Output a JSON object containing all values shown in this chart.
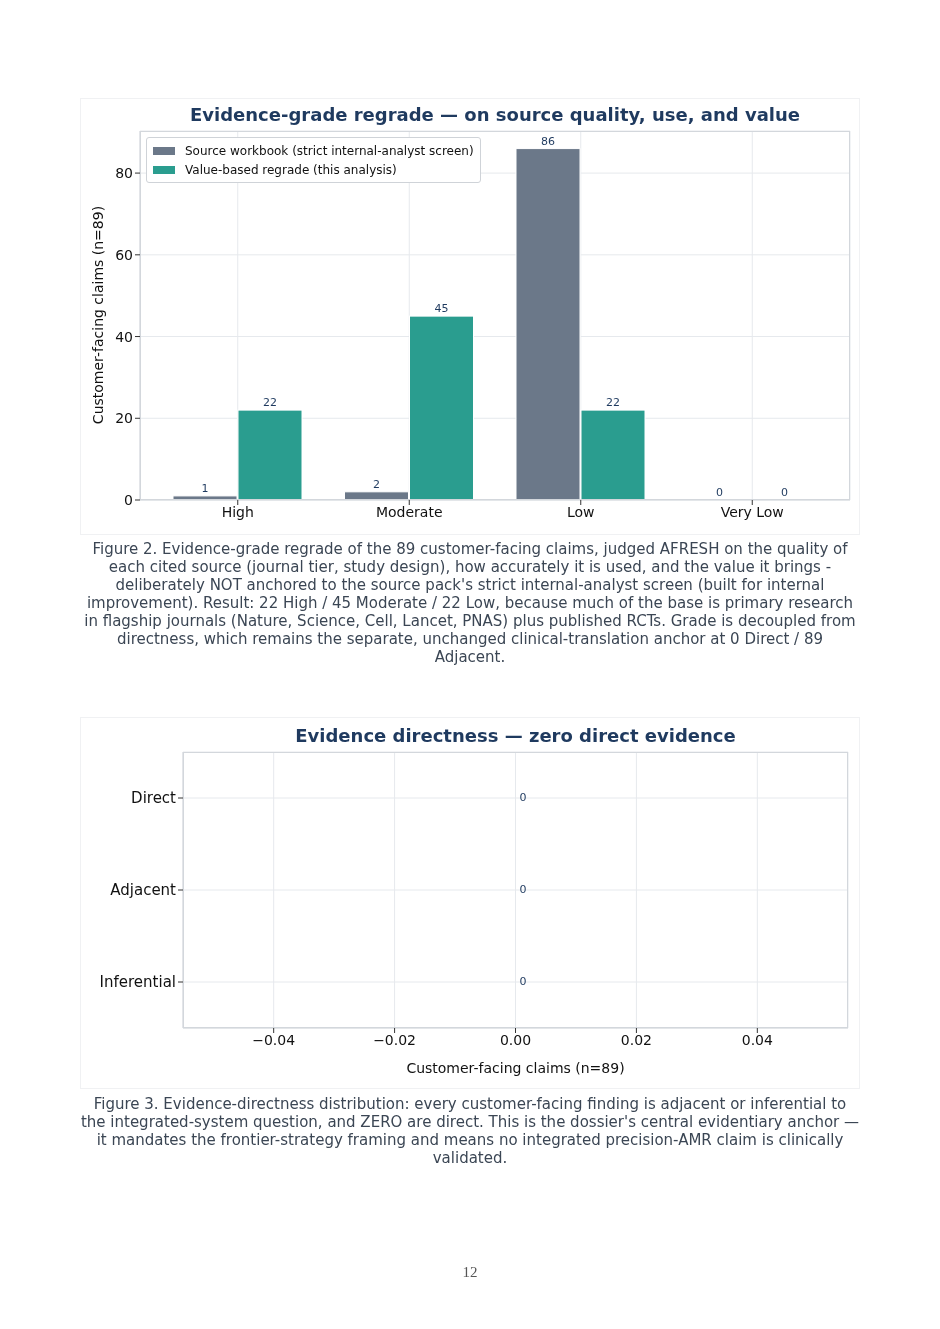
{
  "chart_data": [
    {
      "type": "bar",
      "title": "Evidence-grade regrade — on source quality, use, and value",
      "ylabel": "Customer-facing claims (n=89)",
      "categories": [
        "High",
        "Moderate",
        "Low",
        "Very Low"
      ],
      "series": [
        {
          "name": "Source workbook (strict internal-analyst screen)",
          "color": "#6b7889",
          "values": [
            1,
            2,
            86,
            0
          ]
        },
        {
          "name": "Value-based regrade (this analysis)",
          "color": "#2a9d8f",
          "values": [
            22,
            45,
            22,
            0
          ]
        }
      ],
      "ylim": [
        0,
        90.3
      ],
      "yticks": [
        0,
        20,
        40,
        60,
        80
      ],
      "grid": true,
      "legend": "top left",
      "data_labels": true,
      "annotations": [
        "Figure 2. Evidence-grade regrade of the 89 customer-facing claims, judged AFRESH on the quality of each cited source (journal tier, study design), how accurately it is used, and the value it brings - deliberately NOT anchored to the source pack's strict internal-analyst screen (built for internal improvement). Result: 22 High / 45 Moderate / 22 Low, because much of the base is primary research in flagship journals (Nature, Science, Cell, Lancet, PNAS) plus published RCTs. Grade is decoupled from directness, which remains the separate, unchanged clinical-translation anchor at 0 Direct / 89 Adjacent."
      ]
    },
    {
      "type": "bar",
      "orientation": "horizontal",
      "title": "Evidence directness — zero direct evidence",
      "xlabel": "Customer-facing claims (n=89)",
      "categories": [
        "Direct",
        "Adjacent",
        "Inferential"
      ],
      "values": [
        0,
        0,
        0
      ],
      "xlim": [
        -0.055,
        0.055
      ],
      "xticks": [
        {
          "value": -0.04,
          "label": "−0.04"
        },
        {
          "value": -0.02,
          "label": "−0.02"
        },
        {
          "value": 0,
          "label": "0.00"
        },
        0.02,
        0.04
      ],
      "grid": true,
      "data_labels": true,
      "annotations": [
        "Figure 3. Evidence-directness distribution: every customer-facing finding is adjacent or inferential to the integrated-system question, and ZERO are direct. This is the dossier's central evidentiary anchor — it mandates the frontier-strategy framing and means no integrated precision-AMR claim is clinically validated.",
        "12"
      ]
    }
  ]
}
